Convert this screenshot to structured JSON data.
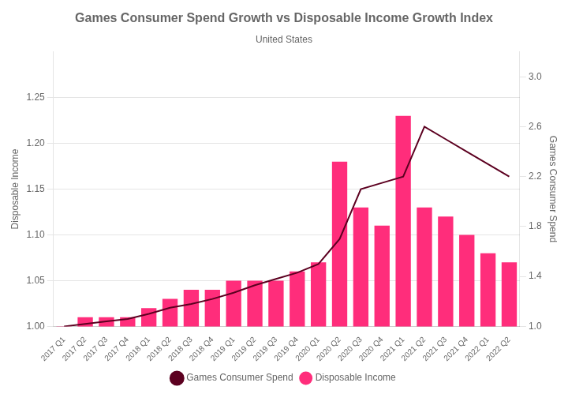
{
  "chart_data": {
    "type": "bar",
    "title": "Games Consumer Spend Growth vs Disposable Income Growth Index",
    "subtitle": "United States",
    "categories": [
      "2017 Q1",
      "2017 Q2",
      "2017 Q3",
      "2017 Q4",
      "2018 Q1",
      "2018 Q2",
      "2018 Q3",
      "2018 Q4",
      "2019 Q1",
      "2019 Q2",
      "2019 Q3",
      "2019 Q4",
      "2020 Q1",
      "2020 Q2",
      "2020 Q3",
      "2020 Q4",
      "2021 Q1",
      "2021 Q2",
      "2021 Q3",
      "2021 Q4",
      "2022 Q1",
      "2022 Q2"
    ],
    "series": [
      {
        "name": "Disposable Income",
        "type": "bar",
        "color": "#FF2D7B",
        "values": [
          1.0,
          1.01,
          1.01,
          1.01,
          1.02,
          1.03,
          1.04,
          1.04,
          1.05,
          1.05,
          1.05,
          1.06,
          1.07,
          1.18,
          1.13,
          1.11,
          1.23,
          1.13,
          1.12,
          1.1,
          1.08,
          1.07
        ]
      },
      {
        "name": "Games Consumer Spend",
        "type": "line",
        "color": "#5C0020",
        "axis": "y2",
        "values": [
          1.0,
          1.02,
          1.04,
          1.06,
          1.1,
          1.15,
          1.18,
          1.22,
          1.27,
          1.33,
          1.38,
          1.43,
          1.5,
          1.7,
          2.1,
          2.15,
          2.2,
          2.6,
          2.5,
          2.4,
          2.3,
          2.2
        ]
      }
    ],
    "ylabel": "Disposable Income",
    "y2label": "Games Consumer Spend",
    "ylim": [
      1.0,
      1.3
    ],
    "yticks": [
      {
        "value": 1.0,
        "label": "1.00"
      },
      1.05,
      {
        "value": 1.1,
        "label": "1.10"
      },
      1.15,
      {
        "value": 1.2,
        "label": "1.20"
      },
      1.25
    ],
    "y2lim": [
      1.0,
      3.2
    ],
    "y2ticks": [
      {
        "value": 1.0,
        "label": "1.0"
      },
      1.4,
      1.8,
      2.2,
      2.6,
      {
        "value": 3.0,
        "label": "3.0"
      }
    ],
    "grid": true,
    "legend": "bottom"
  }
}
